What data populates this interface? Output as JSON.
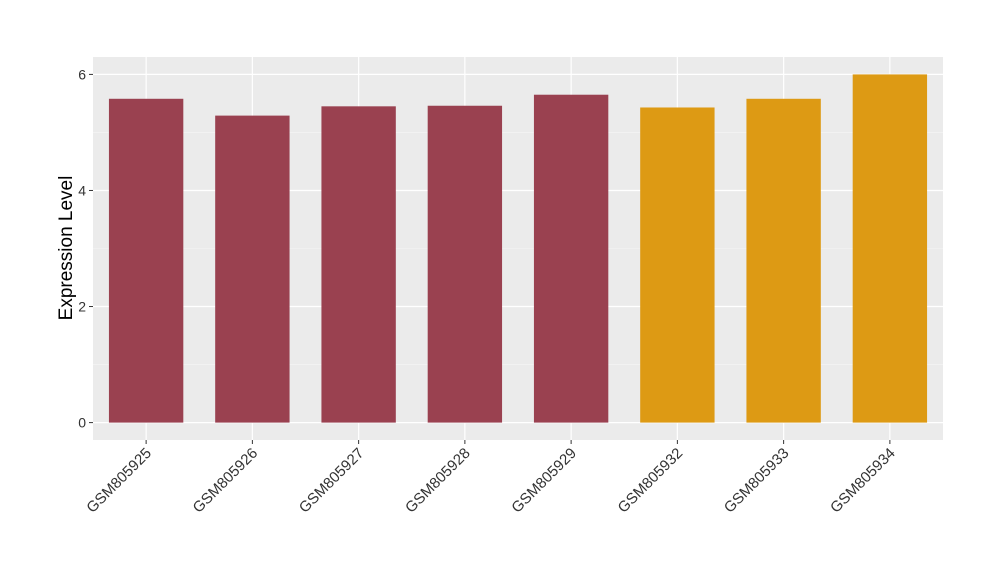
{
  "chart_data": {
    "type": "bar",
    "y_label": "Expression Level",
    "categories": [
      "GSM805925",
      "GSM805926",
      "GSM805927",
      "GSM805928",
      "GSM805929",
      "GSM805932",
      "GSM805933",
      "GSM805934"
    ],
    "values": [
      5.58,
      5.29,
      5.45,
      5.46,
      5.65,
      5.43,
      5.58,
      6.0
    ],
    "colors": [
      "#9a4150",
      "#9a4150",
      "#9a4150",
      "#9a4150",
      "#9a4150",
      "#dd9a14",
      "#dd9a14",
      "#dd9a14"
    ],
    "ylim": [
      -0.3,
      6.3
    ],
    "yticks": [
      0,
      2,
      4,
      6
    ],
    "grid": true
  }
}
